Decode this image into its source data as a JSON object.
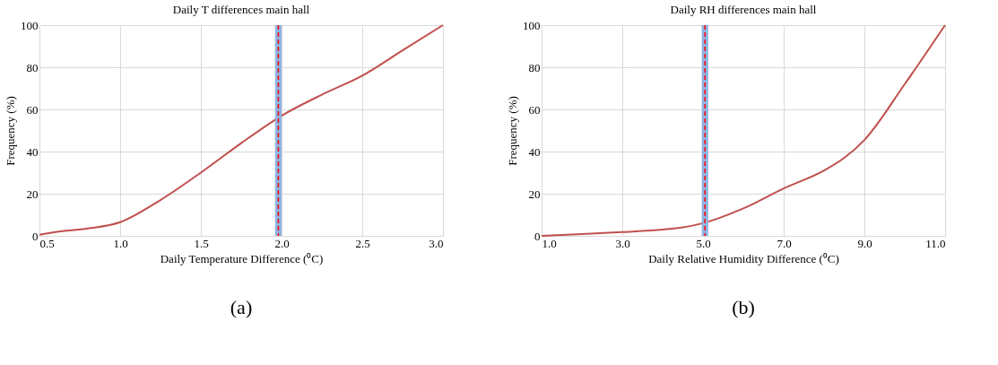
{
  "chart_data": [
    {
      "type": "line",
      "title": "Daily T differences main hall",
      "xlabel": "Daily Temperature Difference (⁰C)",
      "ylabel": "Frequency (%)",
      "x": [
        0.5,
        0.6,
        0.8,
        1.0,
        1.25,
        1.5,
        1.75,
        2.0,
        2.25,
        2.5,
        2.75,
        3.0
      ],
      "series": [
        {
          "color": "#c0504d",
          "values": [
            0.5,
            1.8,
            3.5,
            6.5,
            17,
            30,
            44,
            57,
            67,
            76,
            88,
            100
          ]
        }
      ],
      "xlim": [
        0.5,
        3.0
      ],
      "xticks": [
        {
          "value": 0.5,
          "label": "0.5"
        },
        {
          "value": 1.0,
          "label": "1.0"
        },
        {
          "value": 1.5,
          "label": "1.5"
        },
        {
          "value": 2.0,
          "label": "2.0"
        },
        {
          "value": 2.5,
          "label": "2.5"
        },
        {
          "value": 3.0,
          "label": "3.0"
        }
      ],
      "ylim": [
        0,
        100
      ],
      "yticks": [
        0,
        20,
        40,
        60,
        80,
        100
      ],
      "grid": true,
      "marker": "none",
      "line_style": "solid",
      "ref_lines": [
        {
          "axis": "x",
          "value": 1.98,
          "color": "#ff0000",
          "line_style": "dashed"
        }
      ],
      "bands": [
        {
          "axis": "x",
          "from": 1.96,
          "to": 2.0,
          "color": "#8eb4e3"
        }
      ],
      "annotations": [
        "(a)"
      ]
    },
    {
      "type": "line",
      "title": "Daily RH differences main hall",
      "xlabel": "Daily Relative Humidity Difference (⁰C)",
      "ylabel": "Frequency (%)",
      "x": [
        1,
        2,
        3,
        4,
        4.5,
        5,
        6,
        7,
        8,
        8.5,
        9,
        10,
        11
      ],
      "series": [
        {
          "color": "#c0504d",
          "values": [
            0,
            0.8,
            1.8,
            3,
            4,
            6,
            13,
            22.5,
            31,
            37,
            45.5,
            72,
            100
          ]
        }
      ],
      "xlim": [
        1,
        11
      ],
      "xticks": [
        {
          "value": 1,
          "label": "1.0"
        },
        {
          "value": 3,
          "label": "3.0"
        },
        {
          "value": 5,
          "label": "5.0"
        },
        {
          "value": 7,
          "label": "7.0"
        },
        {
          "value": 9,
          "label": "9.0"
        },
        {
          "value": 11,
          "label": "11.0"
        }
      ],
      "ylim": [
        0,
        100
      ],
      "yticks": [
        0,
        20,
        40,
        60,
        80,
        100
      ],
      "grid": true,
      "marker": "none",
      "line_style": "solid",
      "ref_lines": [
        {
          "axis": "x",
          "value": 5.05,
          "color": "#ff0000",
          "line_style": "dashed"
        }
      ],
      "bands": [
        {
          "axis": "x",
          "from": 4.97,
          "to": 5.13,
          "color": "#8eb4e3"
        }
      ],
      "annotations": [
        "(b)"
      ]
    }
  ]
}
